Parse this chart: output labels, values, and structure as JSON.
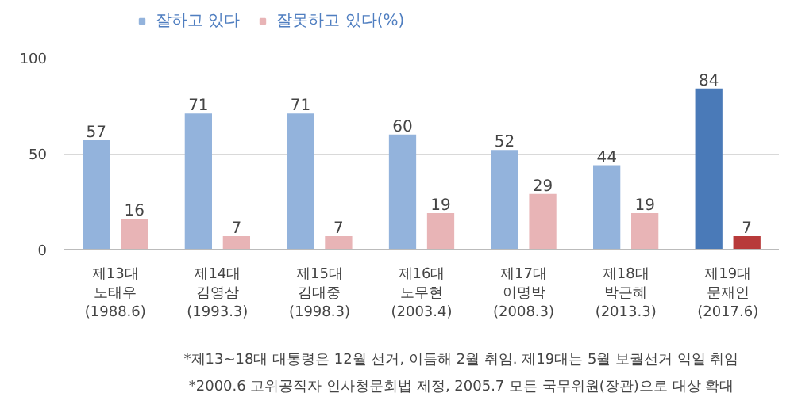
{
  "chart_data": {
    "type": "bar",
    "categories": [
      "제13대\n노태우\n(1988.6)",
      "제14대\n김영삼\n(1993.3)",
      "제15대\n김대중\n(1998.3)",
      "제16대\n노무현\n(2003.4)",
      "제17대\n이명박\n(2008.3)",
      "제18대\n박근혜\n(2013.3)",
      "제19대\n문재인\n(2017.6)"
    ],
    "series": [
      {
        "name": "잘하고 있다",
        "color": "#93b3dc",
        "colors": [
          "#93b3dc",
          "#93b3dc",
          "#93b3dc",
          "#93b3dc",
          "#93b3dc",
          "#93b3dc",
          "#4a7ab8"
        ],
        "values": [
          57,
          71,
          71,
          60,
          52,
          44,
          84
        ]
      },
      {
        "name": "잘못하고 있다(%)",
        "color": "#e8b4b6",
        "colors": [
          "#e8b4b6",
          "#e8b4b6",
          "#e8b4b6",
          "#e8b4b6",
          "#e8b4b6",
          "#e8b4b6",
          "#b83a3a"
        ],
        "values": [
          16,
          7,
          7,
          19,
          29,
          19,
          7
        ]
      }
    ],
    "ylim": [
      0,
      100
    ],
    "yticks": [
      0,
      50,
      100
    ],
    "grid": "y",
    "legend": "top left",
    "data_labels": true,
    "annotations": [
      "*제13~18대 대통령은 12월 선거, 이듬해 2월 취임. 제19대는 5월 보궐선거 익일 취임",
      "*2000.6 고위공직자 인사청문회법 제정, 2005.7 모든 국무위원(장관)으로 대상 확대"
    ]
  }
}
